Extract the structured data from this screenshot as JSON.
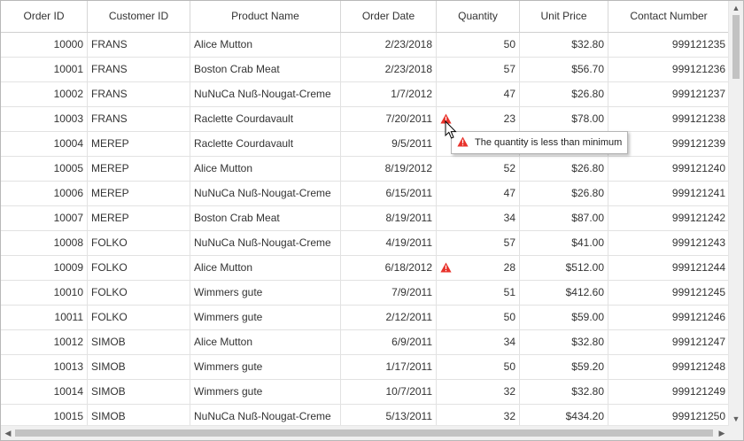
{
  "columns": [
    "Order ID",
    "Customer ID",
    "Product Name",
    "Order Date",
    "Quantity",
    "Unit Price",
    "Contact Number"
  ],
  "rows": [
    {
      "order_id": "10000",
      "customer_id": "FRANS",
      "product": "Alice Mutton",
      "date": "2/23/2018",
      "quantity": "50",
      "price": "$32.80",
      "contact": "999121235",
      "error": false
    },
    {
      "order_id": "10001",
      "customer_id": "FRANS",
      "product": "Boston Crab Meat",
      "date": "2/23/2018",
      "quantity": "57",
      "price": "$56.70",
      "contact": "999121236",
      "error": false
    },
    {
      "order_id": "10002",
      "customer_id": "FRANS",
      "product": "NuNuCa Nuß-Nougat-Creme",
      "date": "1/7/2012",
      "quantity": "47",
      "price": "$26.80",
      "contact": "999121237",
      "error": false
    },
    {
      "order_id": "10003",
      "customer_id": "FRANS",
      "product": "Raclette Courdavault",
      "date": "7/20/2011",
      "quantity": "23",
      "price": "$78.00",
      "contact": "999121238",
      "error": true
    },
    {
      "order_id": "10004",
      "customer_id": "MEREP",
      "product": "Raclette Courdavault",
      "date": "9/5/2011",
      "quantity": "",
      "price": "",
      "contact": "999121239",
      "error": false
    },
    {
      "order_id": "10005",
      "customer_id": "MEREP",
      "product": "Alice Mutton",
      "date": "8/19/2012",
      "quantity": "52",
      "price": "$26.80",
      "contact": "999121240",
      "error": false
    },
    {
      "order_id": "10006",
      "customer_id": "MEREP",
      "product": "NuNuCa Nuß-Nougat-Creme",
      "date": "6/15/2011",
      "quantity": "47",
      "price": "$26.80",
      "contact": "999121241",
      "error": false
    },
    {
      "order_id": "10007",
      "customer_id": "MEREP",
      "product": "Boston Crab Meat",
      "date": "8/19/2011",
      "quantity": "34",
      "price": "$87.00",
      "contact": "999121242",
      "error": false
    },
    {
      "order_id": "10008",
      "customer_id": "FOLKO",
      "product": "NuNuCa Nuß-Nougat-Creme",
      "date": "4/19/2011",
      "quantity": "57",
      "price": "$41.00",
      "contact": "999121243",
      "error": false
    },
    {
      "order_id": "10009",
      "customer_id": "FOLKO",
      "product": "Alice Mutton",
      "date": "6/18/2012",
      "quantity": "28",
      "price": "$512.00",
      "contact": "999121244",
      "error": true
    },
    {
      "order_id": "10010",
      "customer_id": "FOLKO",
      "product": "Wimmers gute",
      "date": "7/9/2011",
      "quantity": "51",
      "price": "$412.60",
      "contact": "999121245",
      "error": false
    },
    {
      "order_id": "10011",
      "customer_id": "FOLKO",
      "product": "Wimmers gute",
      "date": "2/12/2011",
      "quantity": "50",
      "price": "$59.00",
      "contact": "999121246",
      "error": false
    },
    {
      "order_id": "10012",
      "customer_id": "SIMOB",
      "product": "Alice Mutton",
      "date": "6/9/2011",
      "quantity": "34",
      "price": "$32.80",
      "contact": "999121247",
      "error": false
    },
    {
      "order_id": "10013",
      "customer_id": "SIMOB",
      "product": "Wimmers gute",
      "date": "1/17/2011",
      "quantity": "50",
      "price": "$59.20",
      "contact": "999121248",
      "error": false
    },
    {
      "order_id": "10014",
      "customer_id": "SIMOB",
      "product": "Wimmers gute",
      "date": "10/7/2011",
      "quantity": "32",
      "price": "$32.80",
      "contact": "999121249",
      "error": false
    },
    {
      "order_id": "10015",
      "customer_id": "SIMOB",
      "product": "NuNuCa Nuß-Nougat-Creme",
      "date": "5/13/2011",
      "quantity": "32",
      "price": "$434.20",
      "contact": "999121250",
      "error": false
    }
  ],
  "tooltip": {
    "message": "The quantity is less than minimum"
  },
  "icons": {
    "error": "warning-triangle-icon",
    "cursor": "mouse-pointer-icon"
  },
  "colors": {
    "error": "#e8322b",
    "border": "#d6d6d6",
    "scroll_thumb": "#c2c2c2"
  }
}
